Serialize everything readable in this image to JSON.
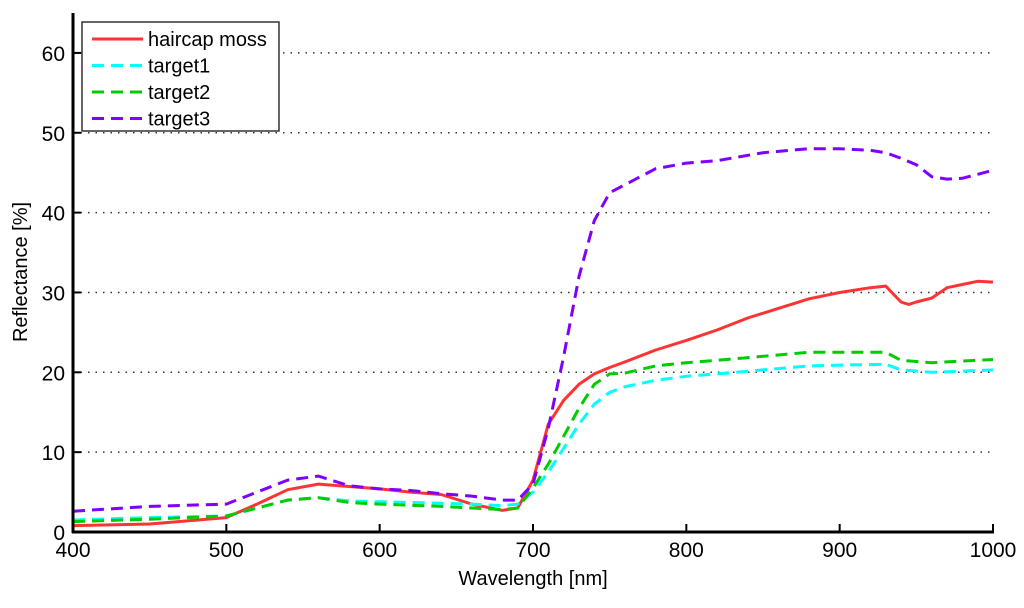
{
  "chart_data": {
    "type": "line",
    "title": "",
    "xlabel": "Wavelength [nm]",
    "ylabel": "Reflectance [%]",
    "xlim": [
      400,
      1000
    ],
    "ylim": [
      0,
      65
    ],
    "xticks": [
      400,
      500,
      600,
      700,
      800,
      900,
      1000
    ],
    "yticks": [
      0,
      10,
      20,
      30,
      40,
      50,
      60
    ],
    "grid": "horizontal dotted",
    "legend_position": "top-left",
    "series": [
      {
        "name": "haircap moss",
        "color": "#ff3333",
        "style": "solid",
        "x": [
          400,
          450,
          500,
          520,
          540,
          560,
          580,
          600,
          620,
          640,
          660,
          680,
          690,
          700,
          710,
          720,
          730,
          740,
          750,
          760,
          780,
          800,
          820,
          840,
          860,
          880,
          900,
          920,
          930,
          940,
          945,
          950,
          960,
          970,
          980,
          990,
          1000
        ],
        "y": [
          0.8,
          1.0,
          1.8,
          3.5,
          5.3,
          6.0,
          5.7,
          5.4,
          5.0,
          4.7,
          3.5,
          2.7,
          3.0,
          6.5,
          13.5,
          16.5,
          18.5,
          19.8,
          20.6,
          21.3,
          22.8,
          24.0,
          25.3,
          26.8,
          28.0,
          29.2,
          30.0,
          30.6,
          30.8,
          28.8,
          28.5,
          28.8,
          29.3,
          30.6,
          31.0,
          31.4,
          31.3
        ]
      },
      {
        "name": "target1",
        "color": "#00ffff",
        "style": "dashed",
        "x": [
          400,
          450,
          500,
          520,
          540,
          560,
          580,
          600,
          640,
          660,
          680,
          690,
          700,
          710,
          720,
          730,
          740,
          750,
          760,
          780,
          800,
          820,
          850,
          880,
          900,
          930,
          940,
          960,
          1000
        ],
        "y": [
          1.5,
          1.8,
          2.0,
          3.0,
          4.0,
          4.3,
          3.9,
          3.8,
          3.6,
          3.5,
          3.3,
          3.5,
          5.0,
          7.5,
          10.5,
          13.5,
          16.0,
          17.5,
          18.2,
          19.0,
          19.5,
          19.8,
          20.3,
          20.8,
          20.9,
          21.0,
          20.3,
          20.0,
          20.3
        ]
      },
      {
        "name": "target2",
        "color": "#00cc00",
        "style": "dashed",
        "x": [
          400,
          450,
          500,
          520,
          540,
          560,
          580,
          600,
          640,
          660,
          680,
          690,
          700,
          710,
          720,
          730,
          740,
          750,
          760,
          780,
          800,
          820,
          850,
          880,
          900,
          930,
          940,
          960,
          1000
        ],
        "y": [
          1.3,
          1.6,
          2.0,
          3.0,
          4.0,
          4.3,
          3.7,
          3.5,
          3.2,
          3.0,
          2.8,
          3.0,
          5.5,
          8.5,
          12.0,
          15.5,
          18.5,
          19.8,
          19.9,
          20.8,
          21.2,
          21.5,
          22.0,
          22.5,
          22.5,
          22.5,
          21.5,
          21.2,
          21.6
        ]
      },
      {
        "name": "target3",
        "color": "#8000ff",
        "style": "dashed",
        "x": [
          400,
          450,
          500,
          520,
          540,
          560,
          580,
          600,
          620,
          640,
          660,
          680,
          690,
          700,
          710,
          720,
          730,
          740,
          750,
          760,
          780,
          800,
          820,
          850,
          880,
          900,
          920,
          930,
          940,
          950,
          960,
          970,
          980,
          990,
          1000
        ],
        "y": [
          2.6,
          3.2,
          3.5,
          5.0,
          6.5,
          7.0,
          5.8,
          5.4,
          5.2,
          4.8,
          4.5,
          4.0,
          4.0,
          6.0,
          13.0,
          22.0,
          32.0,
          39.0,
          42.5,
          43.5,
          45.5,
          46.2,
          46.5,
          47.5,
          48.0,
          48.0,
          47.8,
          47.5,
          46.8,
          46.0,
          44.5,
          44.2,
          44.3,
          44.8,
          45.3
        ]
      }
    ]
  }
}
